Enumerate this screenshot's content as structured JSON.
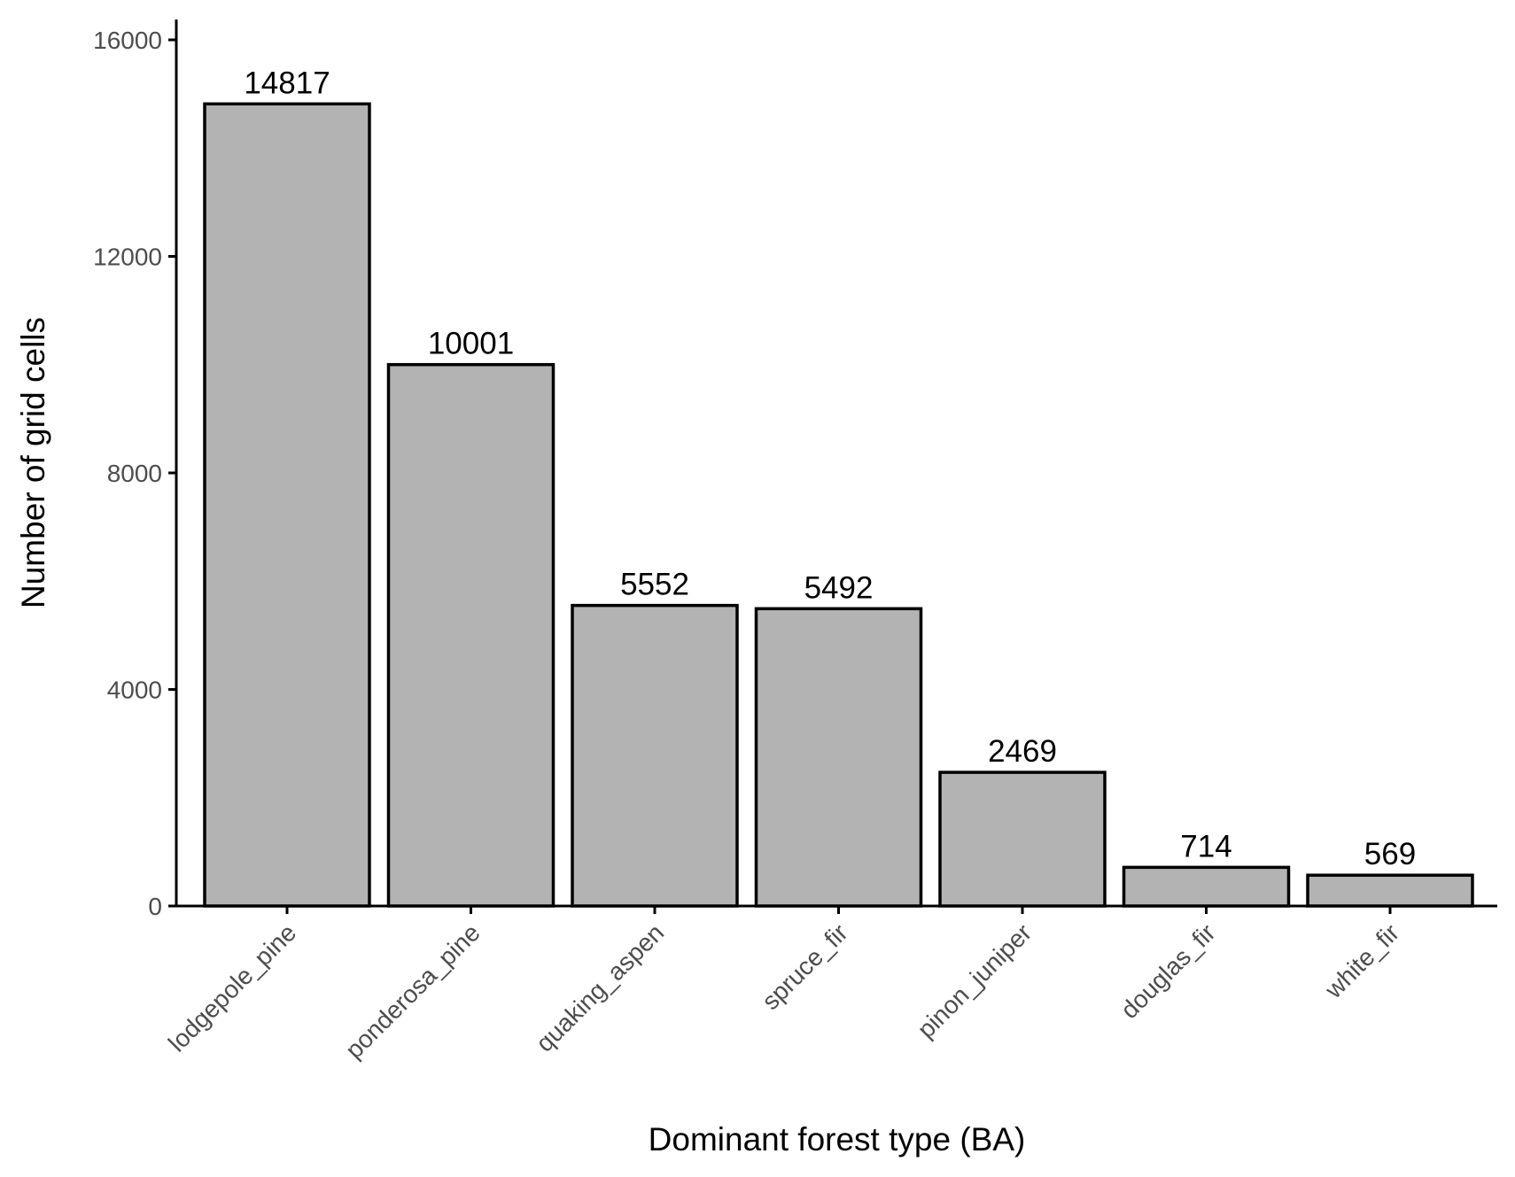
{
  "chart_data": {
    "type": "bar",
    "title": "",
    "xlabel": "Dominant forest type (BA)",
    "ylabel": "Number of grid cells",
    "categories": [
      "lodgepole_pine",
      "ponderosa_pine",
      "quaking_aspen",
      "spruce_fir",
      "pinon_juniper",
      "douglas_fir",
      "white_fir"
    ],
    "values": [
      14817,
      10001,
      5552,
      5492,
      2469,
      714,
      569
    ],
    "data_labels": [
      "14817",
      "10001",
      "5552",
      "5492",
      "2469",
      "714",
      "569"
    ],
    "ylim": [
      0,
      16000
    ],
    "yticks": [
      0,
      4000,
      8000,
      12000,
      16000
    ],
    "ytick_labels": [
      "0",
      "4000",
      "8000",
      "12000",
      "16000"
    ],
    "grid": false,
    "legend": "none",
    "colors": {
      "bar_fill": "#b3b3b3",
      "bar_stroke": "#000000",
      "axis": "#000000",
      "tick_label": "#4d4d4d"
    }
  }
}
